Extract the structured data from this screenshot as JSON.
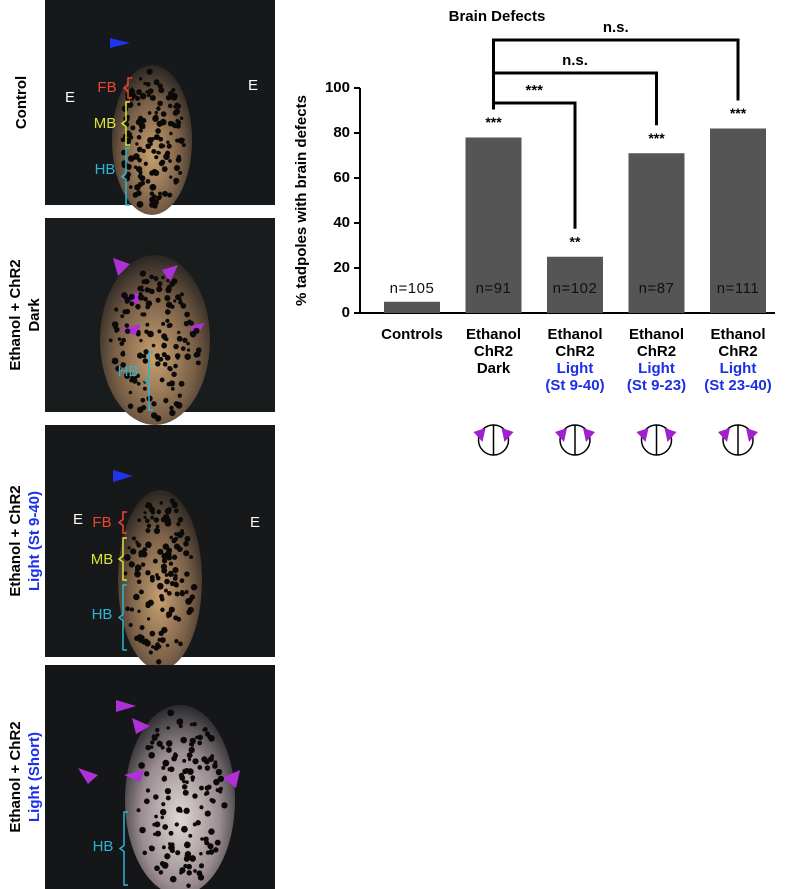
{
  "panels": [
    {
      "title": "Control",
      "regions": [
        "FB",
        "MB",
        "HB"
      ],
      "eye": "E"
    },
    {
      "title": "Ethanol + ChR2",
      "subtitle": "Dark",
      "regions": [
        "HB"
      ]
    },
    {
      "title": "Ethanol + ChR2",
      "subtitle": "Light (St 9-40)",
      "regions": [
        "FB",
        "MB",
        "HB"
      ],
      "eye": "E"
    },
    {
      "title": "Ethanol + ChR2",
      "subtitle": "Light (Short)",
      "regions": [
        "HB"
      ]
    }
  ],
  "chart_data": {
    "type": "bar",
    "title": "Brain Defects",
    "y_label": "% tadpoles with brain defects",
    "categories": [
      {
        "text": [
          "Controls"
        ]
      },
      {
        "text": [
          "Ethanol",
          "ChR2",
          "Dark"
        ]
      },
      {
        "text": [
          "Ethanol",
          "ChR2"
        ],
        "condition": [
          "Light",
          "(St 9-40)"
        ]
      },
      {
        "text": [
          "Ethanol",
          "ChR2"
        ],
        "condition": [
          "Light",
          "(St 9-23)"
        ]
      },
      {
        "text": [
          "Ethanol",
          "ChR2"
        ],
        "condition": [
          "Light",
          "(St 23-40)"
        ]
      }
    ],
    "condition_color": "#1a2fe6",
    "values": [
      5,
      78,
      25,
      71,
      82
    ],
    "color": "#555555",
    "n_labels": [
      "n=105",
      "n=91",
      "n=102",
      "n=87",
      "n=111"
    ],
    "significance": [
      null,
      "***",
      "**",
      "***",
      "***"
    ],
    "comparisons": [
      {
        "from": 1,
        "to": 4,
        "label": "n.s."
      },
      {
        "from": 1,
        "to": 3,
        "label": "n.s."
      },
      {
        "from": 1,
        "to": 2,
        "label": "***"
      }
    ],
    "ylim": [
      0,
      100
    ],
    "yticks": [
      0,
      20,
      40,
      60,
      80,
      100
    ]
  }
}
